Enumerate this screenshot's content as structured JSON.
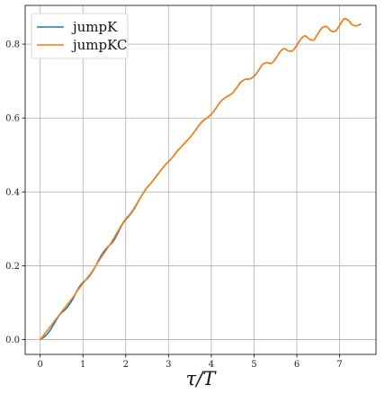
{
  "chart_data": {
    "type": "line",
    "title": "",
    "xlabel": "τ/T",
    "ylabel": "",
    "xlim": [
      -0.35,
      7.85
    ],
    "ylim": [
      -0.04,
      0.905
    ],
    "xticks": [
      0,
      1,
      2,
      3,
      4,
      5,
      6,
      7
    ],
    "yticks": [
      0.0,
      0.2,
      0.4,
      0.6,
      0.8
    ],
    "xtick_labels": [
      "0",
      "1",
      "2",
      "3",
      "4",
      "5",
      "6",
      "7"
    ],
    "ytick_labels": [
      "0.0",
      "0.2",
      "0.4",
      "0.6",
      "0.8"
    ],
    "grid": true,
    "legend_position": "upper-left",
    "series": [
      {
        "name": "jumpK",
        "color": "#1f77b4",
        "x": [
          0,
          0.1,
          0.2,
          0.3,
          0.4,
          0.5,
          0.6,
          0.7,
          0.8,
          0.9,
          1.0,
          1.1,
          1.2,
          1.3,
          1.4,
          1.5,
          1.6,
          1.7,
          1.8,
          1.9,
          2.0,
          2.1,
          2.2,
          2.3,
          2.4,
          2.5,
          2.6,
          2.7,
          2.8,
          2.9,
          3.0,
          3.1,
          3.2,
          3.3,
          3.4,
          3.5,
          3.6,
          3.7,
          3.8,
          3.9,
          4.0,
          4.1,
          4.2,
          4.3,
          4.4,
          4.5,
          4.6,
          4.7,
          4.8,
          4.9,
          5.0,
          5.1,
          5.2,
          5.3,
          5.4,
          5.5,
          5.6,
          5.7,
          5.8,
          5.9,
          6.0,
          6.1,
          6.2,
          6.3,
          6.4,
          6.5,
          6.6,
          6.7,
          6.8,
          6.9,
          7.0,
          7.1,
          7.2,
          7.3,
          7.4,
          7.5
        ],
        "y": [
          0.0,
          0.008,
          0.02,
          0.038,
          0.058,
          0.073,
          0.083,
          0.098,
          0.118,
          0.14,
          0.155,
          0.165,
          0.18,
          0.2,
          0.222,
          0.24,
          0.253,
          0.265,
          0.285,
          0.308,
          0.325,
          0.338,
          0.355,
          0.375,
          0.395,
          0.412,
          0.425,
          0.44,
          0.455,
          0.47,
          0.482,
          0.495,
          0.51,
          0.522,
          0.535,
          0.547,
          0.562,
          0.578,
          0.592,
          0.6,
          0.61,
          0.625,
          0.642,
          0.653,
          0.66,
          0.668,
          0.683,
          0.698,
          0.705,
          0.706,
          0.713,
          0.728,
          0.745,
          0.75,
          0.748,
          0.76,
          0.778,
          0.788,
          0.782,
          0.782,
          0.797,
          0.815,
          0.822,
          0.813,
          0.812,
          0.83,
          0.845,
          0.847,
          0.836,
          0.835,
          0.851,
          0.868,
          0.865,
          0.852,
          0.85,
          0.855
        ]
      },
      {
        "name": "jumpKC",
        "color": "#ff7f0e",
        "x": [
          0,
          0.1,
          0.2,
          0.3,
          0.4,
          0.5,
          0.6,
          0.7,
          0.8,
          0.9,
          1.0,
          1.1,
          1.2,
          1.3,
          1.4,
          1.5,
          1.6,
          1.7,
          1.8,
          1.9,
          2.0,
          2.1,
          2.2,
          2.3,
          2.4,
          2.5,
          2.6,
          2.7,
          2.8,
          2.9,
          3.0,
          3.1,
          3.2,
          3.3,
          3.4,
          3.5,
          3.6,
          3.7,
          3.8,
          3.9,
          4.0,
          4.1,
          4.2,
          4.3,
          4.4,
          4.5,
          4.6,
          4.7,
          4.8,
          4.9,
          5.0,
          5.1,
          5.2,
          5.3,
          5.4,
          5.5,
          5.6,
          5.7,
          5.8,
          5.9,
          6.0,
          6.1,
          6.2,
          6.3,
          6.4,
          6.5,
          6.6,
          6.7,
          6.8,
          6.9,
          7.0,
          7.1,
          7.2,
          7.3,
          7.4,
          7.5
        ],
        "y": [
          0.0,
          0.015,
          0.03,
          0.045,
          0.06,
          0.075,
          0.09,
          0.105,
          0.12,
          0.137,
          0.152,
          0.167,
          0.182,
          0.2,
          0.218,
          0.235,
          0.252,
          0.27,
          0.29,
          0.31,
          0.327,
          0.34,
          0.357,
          0.376,
          0.395,
          0.412,
          0.425,
          0.44,
          0.455,
          0.47,
          0.482,
          0.495,
          0.51,
          0.522,
          0.535,
          0.547,
          0.562,
          0.578,
          0.592,
          0.6,
          0.61,
          0.625,
          0.642,
          0.653,
          0.66,
          0.668,
          0.683,
          0.698,
          0.705,
          0.706,
          0.713,
          0.728,
          0.745,
          0.75,
          0.748,
          0.76,
          0.778,
          0.788,
          0.782,
          0.782,
          0.797,
          0.815,
          0.822,
          0.813,
          0.812,
          0.83,
          0.845,
          0.847,
          0.836,
          0.835,
          0.851,
          0.868,
          0.865,
          0.852,
          0.85,
          0.855
        ]
      }
    ]
  }
}
